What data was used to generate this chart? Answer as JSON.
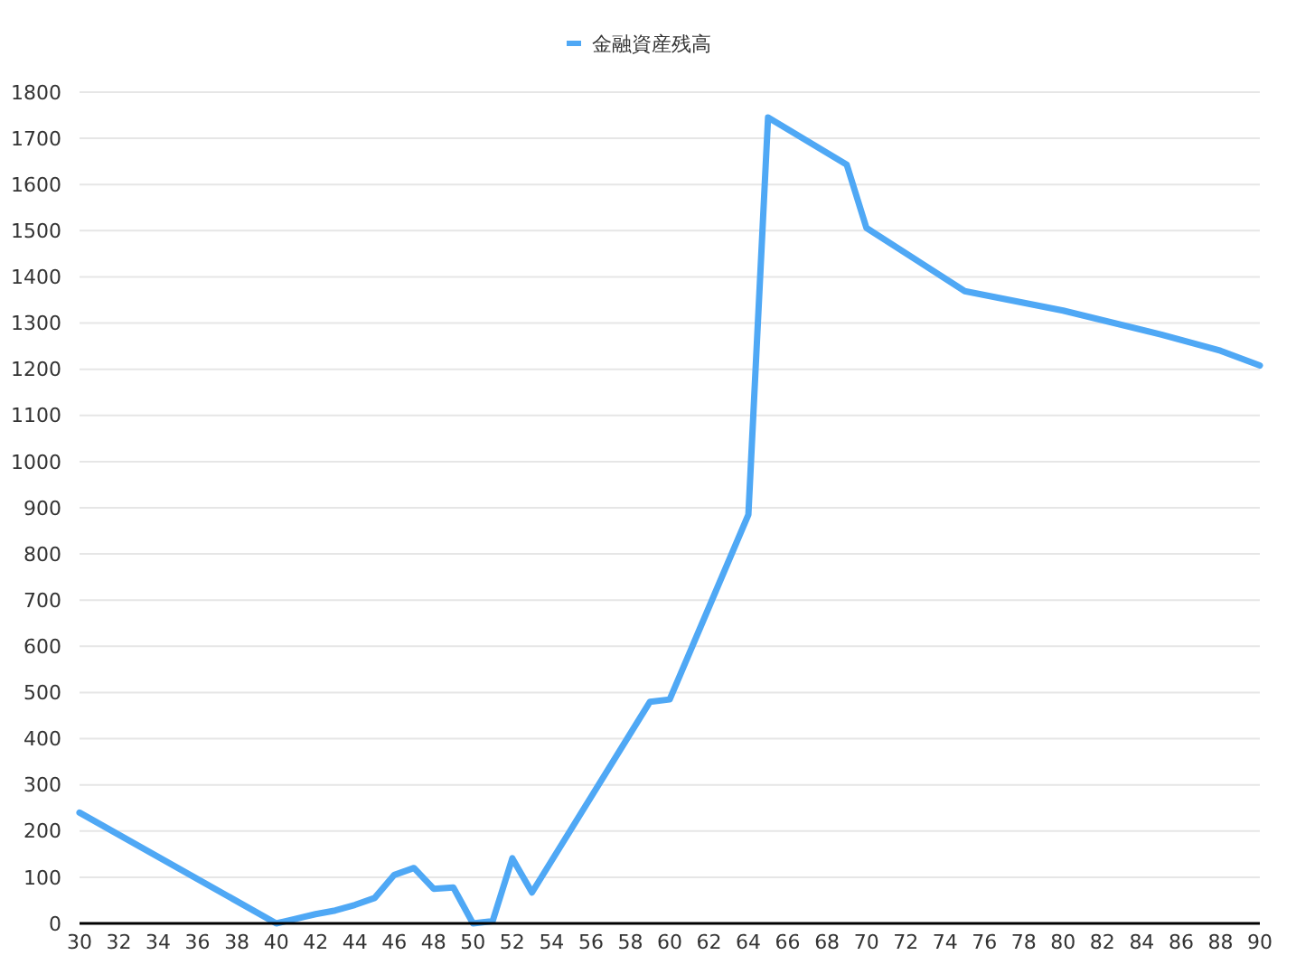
{
  "chart_data": {
    "type": "line",
    "x": [
      30,
      40,
      41,
      42,
      43,
      44,
      45,
      46,
      47,
      48,
      49,
      50,
      51,
      52,
      53,
      59,
      60,
      64,
      65,
      69,
      70,
      75,
      80,
      85,
      88,
      90
    ],
    "series": [
      {
        "name": "金融資産残高",
        "color": "#4fa8f5",
        "values": [
          240,
          0,
          10,
          20,
          28,
          40,
          55,
          105,
          120,
          75,
          78,
          0,
          5,
          141,
          67,
          480,
          485,
          885,
          1745,
          1643,
          1506,
          1369,
          1327,
          1275,
          1240,
          1208
        ]
      }
    ],
    "xlim": [
      30,
      90
    ],
    "xticks": [
      30,
      32,
      34,
      36,
      38,
      40,
      42,
      44,
      46,
      48,
      50,
      52,
      54,
      56,
      58,
      60,
      62,
      64,
      66,
      68,
      70,
      72,
      74,
      76,
      78,
      80,
      82,
      84,
      86,
      88,
      90
    ],
    "ylim": [
      0,
      1800
    ],
    "yticks": [
      0,
      100,
      200,
      300,
      400,
      500,
      600,
      700,
      800,
      900,
      1000,
      1100,
      1200,
      1300,
      1400,
      1500,
      1600,
      1700,
      1800
    ],
    "grid": "y",
    "legend": "top",
    "marker": "none",
    "line_style": "solid"
  }
}
